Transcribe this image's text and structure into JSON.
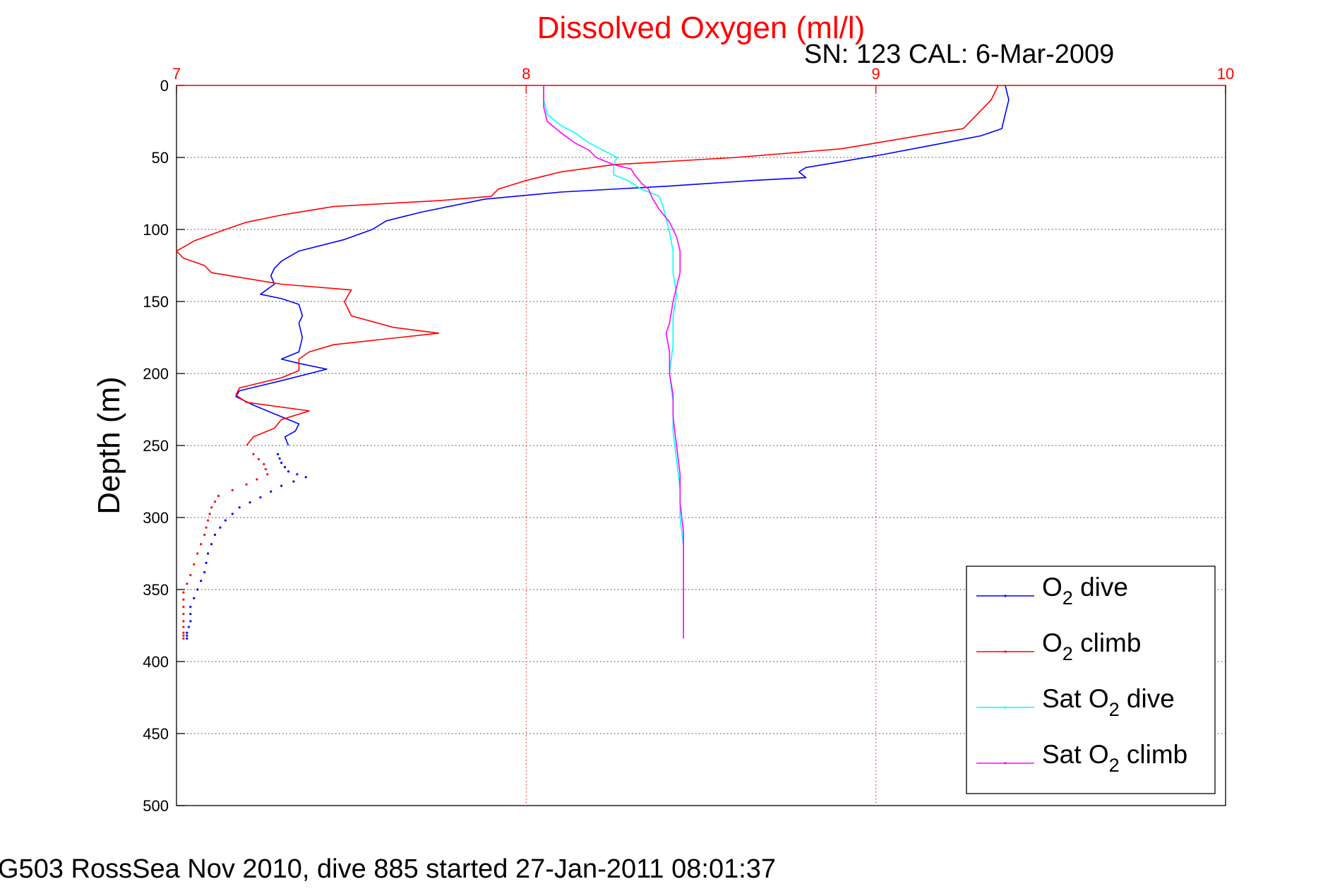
{
  "chart_data": {
    "type": "line",
    "title": "Dissolved Oxygen (ml/l)",
    "subtitle": "SN: 123  CAL: 6-Mar-2009",
    "xlabel": "",
    "ylabel": "Depth (m)",
    "xlim": [
      7,
      10
    ],
    "ylim": [
      0,
      500
    ],
    "y_reversed": true,
    "x_axis_position": "top",
    "xticks": [
      "7",
      "8",
      "9",
      "10"
    ],
    "yticks": [
      "0",
      "50",
      "100",
      "150",
      "200",
      "250",
      "300",
      "350",
      "400",
      "450",
      "500"
    ],
    "grid": true,
    "legend_position": "bottom-right",
    "series": [
      {
        "name": "O2 dive",
        "legend": {
          "pre": "O",
          "sub": "2",
          "post": " dive"
        },
        "color": "#0000ff",
        "points": [
          [
            9.37,
            0
          ],
          [
            9.38,
            10
          ],
          [
            9.37,
            20
          ],
          [
            9.36,
            30
          ],
          [
            9.3,
            35
          ],
          [
            9.15,
            42
          ],
          [
            9.02,
            48
          ],
          [
            8.9,
            53
          ],
          [
            8.8,
            57
          ],
          [
            8.78,
            60
          ],
          [
            8.8,
            64
          ],
          [
            8.65,
            66
          ],
          [
            8.4,
            70
          ],
          [
            8.1,
            74
          ],
          [
            7.88,
            79
          ],
          [
            7.7,
            88
          ],
          [
            7.6,
            94
          ],
          [
            7.56,
            100
          ],
          [
            7.48,
            107
          ],
          [
            7.35,
            115
          ],
          [
            7.3,
            122
          ],
          [
            7.28,
            127
          ],
          [
            7.27,
            132
          ],
          [
            7.28,
            138
          ],
          [
            7.24,
            145
          ],
          [
            7.3,
            148
          ],
          [
            7.35,
            152
          ],
          [
            7.36,
            160
          ],
          [
            7.35,
            165
          ],
          [
            7.36,
            175
          ],
          [
            7.35,
            185
          ],
          [
            7.3,
            190
          ],
          [
            7.35,
            193
          ],
          [
            7.43,
            197
          ],
          [
            7.3,
            205
          ],
          [
            7.18,
            212
          ],
          [
            7.17,
            216
          ],
          [
            7.22,
            222
          ],
          [
            7.3,
            230
          ],
          [
            7.35,
            235
          ],
          [
            7.34,
            240
          ],
          [
            7.31,
            244
          ],
          [
            7.32,
            250
          ]
        ]
      },
      {
        "name": "O2 dive (dotted)",
        "color": "#0000ff",
        "dotted": true,
        "points": [
          [
            7.29,
            256
          ],
          [
            7.3,
            262
          ],
          [
            7.32,
            268
          ],
          [
            7.37,
            272
          ],
          [
            7.3,
            278
          ],
          [
            7.24,
            286
          ],
          [
            7.18,
            293
          ],
          [
            7.14,
            302
          ],
          [
            7.11,
            312
          ],
          [
            7.09,
            325
          ],
          [
            7.08,
            338
          ],
          [
            7.06,
            350
          ],
          [
            7.04,
            362
          ],
          [
            7.04,
            372
          ],
          [
            7.03,
            380
          ],
          [
            7.03,
            384
          ]
        ]
      },
      {
        "name": "O2 climb",
        "legend": {
          "pre": "O",
          "sub": "2",
          "post": " climb"
        },
        "color": "#ff0000",
        "points": [
          [
            9.35,
            0
          ],
          [
            9.33,
            10
          ],
          [
            9.29,
            20
          ],
          [
            9.25,
            30
          ],
          [
            9.17,
            33
          ],
          [
            9.0,
            40
          ],
          [
            8.9,
            44
          ],
          [
            8.6,
            50
          ],
          [
            8.25,
            55
          ],
          [
            8.1,
            60
          ],
          [
            8.0,
            66
          ],
          [
            7.92,
            72
          ],
          [
            7.9,
            77
          ],
          [
            7.75,
            80
          ],
          [
            7.45,
            84
          ],
          [
            7.3,
            90
          ],
          [
            7.2,
            95
          ],
          [
            7.14,
            100
          ],
          [
            7.05,
            108
          ],
          [
            7.0,
            115
          ],
          [
            7.02,
            120
          ],
          [
            7.08,
            125
          ],
          [
            7.1,
            130
          ],
          [
            7.3,
            138
          ],
          [
            7.5,
            142
          ],
          [
            7.48,
            150
          ],
          [
            7.5,
            160
          ],
          [
            7.62,
            168
          ],
          [
            7.75,
            172
          ],
          [
            7.6,
            176
          ],
          [
            7.45,
            180
          ],
          [
            7.38,
            185
          ],
          [
            7.35,
            190
          ],
          [
            7.35,
            198
          ],
          [
            7.3,
            203
          ],
          [
            7.18,
            210
          ],
          [
            7.17,
            215
          ],
          [
            7.2,
            220
          ],
          [
            7.38,
            226
          ],
          [
            7.3,
            232
          ],
          [
            7.28,
            238
          ],
          [
            7.22,
            244
          ],
          [
            7.2,
            250
          ]
        ]
      },
      {
        "name": "O2 climb (dotted)",
        "color": "#ff0000",
        "dotted": true,
        "points": [
          [
            7.22,
            256
          ],
          [
            7.25,
            263
          ],
          [
            7.26,
            270
          ],
          [
            7.2,
            277
          ],
          [
            7.12,
            285
          ],
          [
            7.1,
            293
          ],
          [
            7.09,
            302
          ],
          [
            7.08,
            312
          ],
          [
            7.06,
            325
          ],
          [
            7.04,
            340
          ],
          [
            7.02,
            352
          ],
          [
            7.02,
            362
          ],
          [
            7.02,
            372
          ],
          [
            7.02,
            380
          ],
          [
            7.02,
            384
          ]
        ]
      },
      {
        "name": "Sat O2 dive",
        "legend": {
          "pre": "Sat O",
          "sub": "2",
          "post": " dive"
        },
        "color": "#00ffff",
        "points": [
          [
            8.05,
            0
          ],
          [
            8.05,
            10
          ],
          [
            8.06,
            20
          ],
          [
            8.1,
            28
          ],
          [
            8.14,
            33
          ],
          [
            8.18,
            40
          ],
          [
            8.22,
            45
          ],
          [
            8.26,
            50
          ],
          [
            8.25,
            55
          ],
          [
            8.25,
            62
          ],
          [
            8.29,
            66
          ],
          [
            8.33,
            72
          ],
          [
            8.38,
            77
          ],
          [
            8.39,
            83
          ],
          [
            8.4,
            92
          ],
          [
            8.41,
            102
          ],
          [
            8.42,
            115
          ],
          [
            8.42,
            130
          ],
          [
            8.43,
            145
          ],
          [
            8.42,
            160
          ],
          [
            8.42,
            180
          ],
          [
            8.41,
            200
          ],
          [
            8.42,
            220
          ],
          [
            8.42,
            240
          ],
          [
            8.43,
            260
          ],
          [
            8.44,
            280
          ],
          [
            8.44,
            300
          ],
          [
            8.45,
            320
          ],
          [
            8.45,
            340
          ],
          [
            8.45,
            360
          ],
          [
            8.45,
            384
          ]
        ]
      },
      {
        "name": "Sat O2 climb",
        "legend": {
          "pre": "Sat O",
          "sub": "2",
          "post": " climb"
        },
        "color": "#ff00ff",
        "points": [
          [
            8.05,
            0
          ],
          [
            8.05,
            15
          ],
          [
            8.06,
            25
          ],
          [
            8.1,
            33
          ],
          [
            8.14,
            40
          ],
          [
            8.18,
            45
          ],
          [
            8.2,
            50
          ],
          [
            8.25,
            55
          ],
          [
            8.3,
            58
          ],
          [
            8.31,
            62
          ],
          [
            8.33,
            68
          ],
          [
            8.35,
            72
          ],
          [
            8.36,
            78
          ],
          [
            8.38,
            86
          ],
          [
            8.41,
            95
          ],
          [
            8.43,
            105
          ],
          [
            8.44,
            115
          ],
          [
            8.44,
            130
          ],
          [
            8.43,
            140
          ],
          [
            8.42,
            150
          ],
          [
            8.41,
            165
          ],
          [
            8.4,
            172
          ],
          [
            8.41,
            185
          ],
          [
            8.41,
            200
          ],
          [
            8.42,
            215
          ],
          [
            8.42,
            230
          ],
          [
            8.43,
            250
          ],
          [
            8.44,
            270
          ],
          [
            8.44,
            290
          ],
          [
            8.45,
            310
          ],
          [
            8.45,
            330
          ],
          [
            8.45,
            350
          ],
          [
            8.45,
            370
          ],
          [
            8.45,
            384
          ]
        ]
      }
    ]
  },
  "footer": "G503 RossSea Nov 2010, dive 885 started 27-Jan-2011 08:01:37"
}
